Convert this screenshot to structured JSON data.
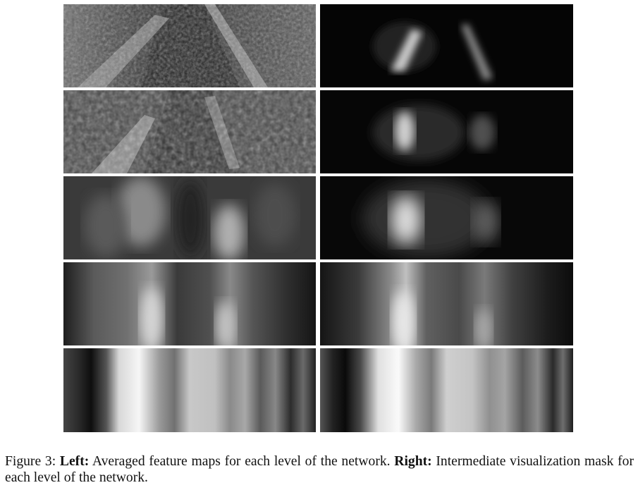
{
  "figure": {
    "rows": [
      {
        "level": 1,
        "left": "feature-map-level-1",
        "right": "visualization-mask-level-1"
      },
      {
        "level": 2,
        "left": "feature-map-level-2",
        "right": "visualization-mask-level-2"
      },
      {
        "level": 3,
        "left": "feature-map-level-3",
        "right": "visualization-mask-level-3"
      },
      {
        "level": 4,
        "left": "feature-map-level-4",
        "right": "visualization-mask-level-4"
      },
      {
        "level": 5,
        "left": "feature-map-level-5",
        "right": "visualization-mask-level-5"
      }
    ]
  },
  "caption": {
    "label": "Figure 3:",
    "left_bold": "Left:",
    "left_text": "Averaged feature maps for each level of the network.",
    "right_bold": "Right:",
    "right_text": "Intermediate visualization mask for each level of the network."
  }
}
